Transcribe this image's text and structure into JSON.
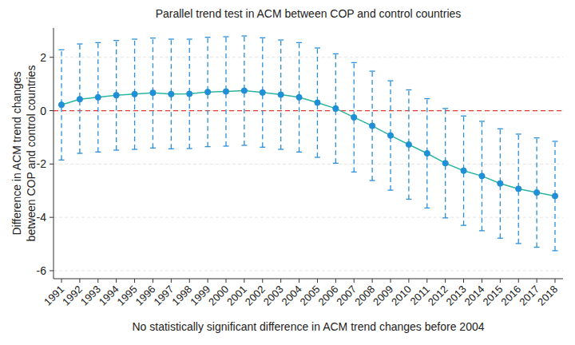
{
  "chart_data": {
    "type": "line",
    "title": "Parallel trend test in ACM between COP and control countries",
    "ylabel": [
      "Difference in ACM trend changes",
      "between COP and control countries"
    ],
    "xlabel": "No statistically significant difference in ACM trend changes before 2004",
    "categories": [
      "1991",
      "1992",
      "1993",
      "1994",
      "1995",
      "1996",
      "1997",
      "1998",
      "1999",
      "2000",
      "2001",
      "2002",
      "2003",
      "2004",
      "2005",
      "2006",
      "2007",
      "2008",
      "2009",
      "2010",
      "2011",
      "2012",
      "2013",
      "2014",
      "2015",
      "2016",
      "2017",
      "2018"
    ],
    "series": [
      {
        "color": "#2bb5a0",
        "marker": "circle",
        "values": [
          0.22,
          0.43,
          0.5,
          0.58,
          0.62,
          0.67,
          0.62,
          0.63,
          0.7,
          0.72,
          0.75,
          0.68,
          0.6,
          0.5,
          0.3,
          0.08,
          -0.25,
          -0.57,
          -0.93,
          -1.27,
          -1.6,
          -1.97,
          -2.25,
          -2.45,
          -2.73,
          -2.93,
          -3.07,
          -3.2
        ],
        "lower": [
          -1.85,
          -1.6,
          -1.55,
          -1.48,
          -1.45,
          -1.4,
          -1.43,
          -1.42,
          -1.35,
          -1.33,
          -1.3,
          -1.37,
          -1.45,
          -1.55,
          -1.75,
          -1.97,
          -2.3,
          -2.62,
          -2.98,
          -3.32,
          -3.65,
          -4.02,
          -4.3,
          -4.5,
          -4.78,
          -4.98,
          -5.12,
          -5.25
        ],
        "upper": [
          2.28,
          2.5,
          2.55,
          2.63,
          2.68,
          2.72,
          2.68,
          2.68,
          2.75,
          2.77,
          2.8,
          2.73,
          2.65,
          2.55,
          2.35,
          2.13,
          1.8,
          1.48,
          1.12,
          0.78,
          0.45,
          0.08,
          -0.2,
          -0.4,
          -0.68,
          -0.88,
          -1.02,
          -1.15
        ]
      }
    ],
    "reference_line": {
      "value": 0,
      "color": "#e8382f",
      "line_style": "dashed"
    },
    "ylim": [
      -6.3,
      3.1
    ],
    "yticks": [
      -6,
      -4,
      -2,
      0,
      2
    ],
    "grid": true
  }
}
